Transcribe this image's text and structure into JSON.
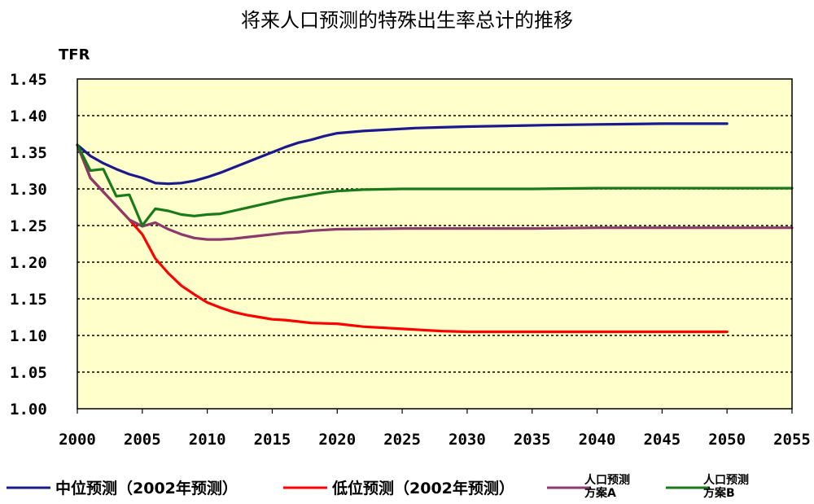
{
  "chart_data": {
    "type": "line",
    "title": "将来人口预测的特殊出生率总计的推移",
    "ylabel": "TFR",
    "xlabel": "",
    "xlim": [
      2000,
      2055
    ],
    "ylim": [
      1.0,
      1.45
    ],
    "x_ticks": [
      "2000",
      "2005",
      "2010",
      "2015",
      "2020",
      "2025",
      "2030",
      "2035",
      "2040",
      "2045",
      "2050",
      "2055"
    ],
    "y_ticks": [
      "1.00",
      "1.05",
      "1.10",
      "1.15",
      "1.20",
      "1.25",
      "1.30",
      "1.35",
      "1.40",
      "1.45"
    ],
    "grid": "horizontal dotted",
    "plot_background": "#ffffcc",
    "legend_position": "bottom",
    "series": [
      {
        "name": "中位预测（2002年预测）",
        "color": "#1a1a8c",
        "points": [
          [
            2000,
            1.36
          ],
          [
            2001,
            1.345
          ],
          [
            2002,
            1.335
          ],
          [
            2003,
            1.327
          ],
          [
            2004,
            1.32
          ],
          [
            2005,
            1.315
          ],
          [
            2006,
            1.308
          ],
          [
            2007,
            1.307
          ],
          [
            2008,
            1.308
          ],
          [
            2009,
            1.311
          ],
          [
            2010,
            1.316
          ],
          [
            2011,
            1.322
          ],
          [
            2012,
            1.329
          ],
          [
            2013,
            1.336
          ],
          [
            2014,
            1.343
          ],
          [
            2015,
            1.35
          ],
          [
            2016,
            1.357
          ],
          [
            2017,
            1.363
          ],
          [
            2018,
            1.367
          ],
          [
            2019,
            1.372
          ],
          [
            2020,
            1.376
          ],
          [
            2022,
            1.379
          ],
          [
            2024,
            1.381
          ],
          [
            2026,
            1.383
          ],
          [
            2028,
            1.384
          ],
          [
            2030,
            1.385
          ],
          [
            2033,
            1.386
          ],
          [
            2036,
            1.387
          ],
          [
            2040,
            1.388
          ],
          [
            2045,
            1.389
          ],
          [
            2050,
            1.389
          ]
        ]
      },
      {
        "name": "低位预测（2002年预测）",
        "color": "#ff0000",
        "points": [
          [
            2000,
            1.36
          ],
          [
            2001,
            1.315
          ],
          [
            2002,
            1.296
          ],
          [
            2003,
            1.277
          ],
          [
            2004,
            1.258
          ],
          [
            2005,
            1.238
          ],
          [
            2006,
            1.205
          ],
          [
            2007,
            1.185
          ],
          [
            2008,
            1.168
          ],
          [
            2009,
            1.156
          ],
          [
            2010,
            1.145
          ],
          [
            2011,
            1.138
          ],
          [
            2012,
            1.132
          ],
          [
            2013,
            1.128
          ],
          [
            2014,
            1.125
          ],
          [
            2015,
            1.122
          ],
          [
            2016,
            1.121
          ],
          [
            2017,
            1.119
          ],
          [
            2018,
            1.117
          ],
          [
            2020,
            1.116
          ],
          [
            2022,
            1.112
          ],
          [
            2025,
            1.109
          ],
          [
            2028,
            1.106
          ],
          [
            2030,
            1.105
          ],
          [
            2035,
            1.105
          ],
          [
            2040,
            1.105
          ],
          [
            2045,
            1.105
          ],
          [
            2050,
            1.105
          ]
        ]
      },
      {
        "name": "人口预测 方案A",
        "color": "#8b3a6b",
        "points": [
          [
            2000,
            1.36
          ],
          [
            2001,
            1.315
          ],
          [
            2002,
            1.296
          ],
          [
            2003,
            1.277
          ],
          [
            2004,
            1.258
          ],
          [
            2005,
            1.249
          ],
          [
            2006,
            1.254
          ],
          [
            2007,
            1.245
          ],
          [
            2008,
            1.238
          ],
          [
            2009,
            1.233
          ],
          [
            2010,
            1.231
          ],
          [
            2011,
            1.231
          ],
          [
            2012,
            1.232
          ],
          [
            2013,
            1.234
          ],
          [
            2014,
            1.236
          ],
          [
            2015,
            1.238
          ],
          [
            2016,
            1.24
          ],
          [
            2017,
            1.241
          ],
          [
            2018,
            1.243
          ],
          [
            2020,
            1.245
          ],
          [
            2025,
            1.246
          ],
          [
            2030,
            1.246
          ],
          [
            2035,
            1.246
          ],
          [
            2040,
            1.247
          ],
          [
            2045,
            1.247
          ],
          [
            2050,
            1.247
          ],
          [
            2055,
            1.247
          ]
        ]
      },
      {
        "name": "人口预测 方案B",
        "color": "#1a7a1a",
        "points": [
          [
            2000,
            1.36
          ],
          [
            2001,
            1.325
          ],
          [
            2002,
            1.327
          ],
          [
            2003,
            1.29
          ],
          [
            2004,
            1.292
          ],
          [
            2005,
            1.25
          ],
          [
            2006,
            1.273
          ],
          [
            2007,
            1.27
          ],
          [
            2008,
            1.265
          ],
          [
            2009,
            1.263
          ],
          [
            2010,
            1.265
          ],
          [
            2011,
            1.266
          ],
          [
            2012,
            1.27
          ],
          [
            2013,
            1.274
          ],
          [
            2014,
            1.278
          ],
          [
            2015,
            1.282
          ],
          [
            2016,
            1.286
          ],
          [
            2017,
            1.289
          ],
          [
            2018,
            1.292
          ],
          [
            2019,
            1.295
          ],
          [
            2020,
            1.297
          ],
          [
            2022,
            1.299
          ],
          [
            2025,
            1.3
          ],
          [
            2030,
            1.3
          ],
          [
            2035,
            1.3
          ],
          [
            2040,
            1.301
          ],
          [
            2045,
            1.301
          ],
          [
            2050,
            1.301
          ],
          [
            2055,
            1.301
          ]
        ]
      }
    ]
  },
  "legend": [
    {
      "lines": [
        "中位预测（2002年预测）"
      ],
      "color": "#1a1a8c"
    },
    {
      "lines": [
        "低位预测（2002年预测）"
      ],
      "color": "#ff0000"
    },
    {
      "lines": [
        "人口预测",
        "方案A"
      ],
      "color": "#8b3a6b"
    },
    {
      "lines": [
        "人口预测",
        "方案B"
      ],
      "color": "#1a7a1a"
    }
  ]
}
